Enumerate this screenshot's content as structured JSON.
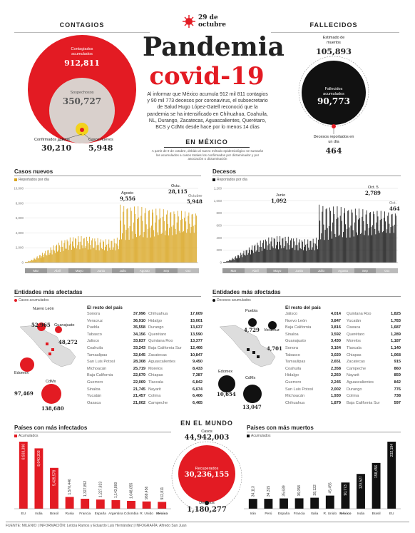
{
  "date": "29 de octubre",
  "title_1": "Pandemia",
  "title_2": "covid-19",
  "intro": "Al informar que México acumula 912 mil 811 contagios y 90 mil 773 decesos por coronavirus, el subsecretario de Salud Hugo López-Gatell reconoció que la pandemia se ha intensificado en Chihuahua, Coahuila, NL, Durango, Zacatecas, Aguascalientes, Querétaro, BCS y CdMx desde hace por lo menos 14 días",
  "mexico": {
    "title": "EN MÉXICO",
    "note": "A partir de 9 de octubre, debido al nuevo método epidemiológico se sumarán los acumulados a casos totales los confirmados por dictaminador y por asociación o dictaminación"
  },
  "contagios": {
    "title": "CONTAGIOS",
    "acumulados_label": "Contagiados acumulados",
    "acumulados": "912,811",
    "sospechosos_label": "Sospechosos",
    "sospechosos": "350,727",
    "activos_label": "Confirmados activos",
    "activos": "30,210",
    "nuevos_label": "Casos nuevos",
    "nuevos": "5,948"
  },
  "fallecidos": {
    "title": "FALLECIDOS",
    "estimado_label": "Estimado de muertos",
    "estimado": "105,893",
    "acumulados_label": "Fallecidos acumulados",
    "acumulados": "90,773",
    "dia_label": "Decesos reportados en un día",
    "dia": "464"
  },
  "casos_nuevos": {
    "title": "Casos nuevos",
    "legend": "Reportados por día",
    "peaks": [
      {
        "label": "Agosto",
        "value": "9,556"
      },
      {
        "label": "Octu.",
        "value": "28,115"
      },
      {
        "label": "Octubre",
        "value": "5,948"
      }
    ],
    "months": [
      "Mar",
      "Abril",
      "Mayo",
      "Junio",
      "Julio",
      "Agosto",
      "Sep",
      "Oct"
    ]
  },
  "decesos": {
    "title": "Decesos",
    "legend": "Reportados por día",
    "peaks": [
      {
        "label": "Junio",
        "value": "1,092"
      },
      {
        "label": "Oct. 5",
        "value": "2,789"
      },
      {
        "label": "Oct.",
        "value": "464"
      }
    ],
    "months": [
      "Mar",
      "Abril",
      "Mayo",
      "Junio",
      "Julio",
      "Agosto",
      "Sep",
      "Oct"
    ]
  },
  "entidades_casos": {
    "title": "Entidades más afectadas",
    "legend": "Casos acumulados",
    "resto": "El resto del país",
    "map_labels": [
      {
        "name": "Nuevo León",
        "value": "52,965"
      },
      {
        "name": "Guanajuato",
        "value": "48,272"
      },
      {
        "name": "Edomex",
        "value": "97,469"
      },
      {
        "name": "CdMx",
        "value": "138,680"
      }
    ],
    "col1": [
      [
        "Sonora",
        "37,996"
      ],
      [
        "Veracruz",
        "36,910"
      ],
      [
        "Puebla",
        "35,558"
      ],
      [
        "Tabasco",
        "34,156"
      ],
      [
        "Jalisco",
        "33,837"
      ],
      [
        "Coahuila",
        "33,243"
      ],
      [
        "Tamaulipas",
        "32,645"
      ],
      [
        "San Luis Potosí",
        "28,308"
      ],
      [
        "Michoacán",
        "25,719"
      ],
      [
        "Baja California",
        "22,679"
      ],
      [
        "Guerrero",
        "22,069"
      ],
      [
        "Sinaloa",
        "21,745"
      ],
      [
        "Yucatán",
        "21,457"
      ],
      [
        "Oaxaca",
        "21,002"
      ]
    ],
    "col2": [
      [
        "Chihuahua",
        "17,609"
      ],
      [
        "Hidalgo",
        "15,601"
      ],
      [
        "Durango",
        "13,637"
      ],
      [
        "Querétaro",
        "13,590"
      ],
      [
        "Quintana Roo",
        "13,377"
      ],
      [
        "Baja California Sur",
        "12,466"
      ],
      [
        "Zacatecas",
        "10,847"
      ],
      [
        "Aguascalientes",
        "9,450"
      ],
      [
        "Morelos",
        "8,433"
      ],
      [
        "Chiapas",
        "7,387"
      ],
      [
        "Tlaxcala",
        "6,842"
      ],
      [
        "Nayarit",
        "6,674"
      ],
      [
        "Colima",
        "6,406"
      ],
      [
        "Campeche",
        "6,465"
      ]
    ]
  },
  "entidades_muertes": {
    "title": "Entidades más afectadas",
    "legend": "Decesos acumulados",
    "resto": "El resto del país",
    "map_labels": [
      {
        "name": "Puebla",
        "value": "4,729"
      },
      {
        "name": "Veracruz",
        "value": "4,701"
      },
      {
        "name": "Edomex",
        "value": "10,654"
      },
      {
        "name": "CdMx",
        "value": "13,047"
      }
    ],
    "col1": [
      [
        "Jalisco",
        "4,014"
      ],
      [
        "Nuevo León",
        "3,847"
      ],
      [
        "Baja California",
        "3,816"
      ],
      [
        "Sinaloa",
        "3,592"
      ],
      [
        "Guanajuato",
        "3,430"
      ],
      [
        "Sonora",
        "3,164"
      ],
      [
        "Tabasco",
        "3,020"
      ],
      [
        "Tamaulipas",
        "2,651"
      ],
      [
        "Coahuila",
        "2,358"
      ],
      [
        "Hidalgo",
        "2,260"
      ],
      [
        "Guerrero",
        "2,245"
      ],
      [
        "San Luis Potosí",
        "2,002"
      ],
      [
        "Michoacán",
        "1,930"
      ],
      [
        "Chihuahua",
        "1,879"
      ]
    ],
    "col2": [
      [
        "Quintana Roo",
        "1,825"
      ],
      [
        "Yucatán",
        "1,783"
      ],
      [
        "Oaxaca",
        "1,687"
      ],
      [
        "Querétaro",
        "1,289"
      ],
      [
        "Morelos",
        "1,187"
      ],
      [
        "Tlaxcala",
        "1,140"
      ],
      [
        "Chiapas",
        "1,068"
      ],
      [
        "Zacatecas",
        "915"
      ],
      [
        "Campeche",
        "860"
      ],
      [
        "Nayarit",
        "859"
      ],
      [
        "Aguascalientes",
        "842"
      ],
      [
        "Durango",
        "776"
      ],
      [
        "Colima",
        "738"
      ],
      [
        "Baja California Sur",
        "597"
      ]
    ]
  },
  "mundo": {
    "title": "EN EL MUNDO",
    "casos_label": "Casos",
    "casos": "44,942,003",
    "recuperados_label": "Recuperados",
    "recuperados": "30,236,155",
    "decesos_label": "Decesos",
    "decesos": "1,180,277"
  },
  "chart_data": [
    {
      "type": "bar",
      "title": "Países con más infectados",
      "legend": "Acumulados",
      "categories": [
        "EU",
        "India",
        "Brasil",
        "Rusia",
        "Francia",
        "España",
        "Argentina",
        "Colombia",
        "R. Unido",
        "México"
      ],
      "values": [
        8933390,
        8040203,
        5439578,
        1570446,
        1327852,
        1227823,
        1143800,
        1048055,
        968456,
        912811
      ],
      "value_labels": [
        "8,933,390",
        "8,040,203",
        "5,439,578",
        "1,570,446",
        "1,327,852",
        "1,227,823",
        "1,143,800",
        "1,048,055",
        "968,456",
        "912,811"
      ],
      "highlight": "México"
    },
    {
      "type": "bar",
      "title": "Países con más muertos",
      "legend": "Acumulados",
      "categories": [
        "Irán",
        "Perú",
        "España",
        "Francia",
        "Italia",
        "R. Unido",
        "México",
        "India",
        "Brasil",
        "EU"
      ],
      "values": [
        34113,
        34315,
        35639,
        36058,
        38122,
        45455,
        90773,
        120527,
        158456,
        232194
      ],
      "value_labels": [
        "34,113",
        "34,315",
        "35,639",
        "36,058",
        "38,122",
        "45,455",
        "90,773",
        "120,527",
        "158,456",
        "232,194"
      ],
      "highlight": "México"
    }
  ],
  "credits": "FUENTE: MILENIO | INFORMACIÓN: Leticia Ramos y Eduardo Luis Hernández | INFOGRAFÍA: Alfredo San Juan",
  "colors": {
    "red": "#e31b23",
    "gold": "#d9a520",
    "black": "#111111"
  }
}
